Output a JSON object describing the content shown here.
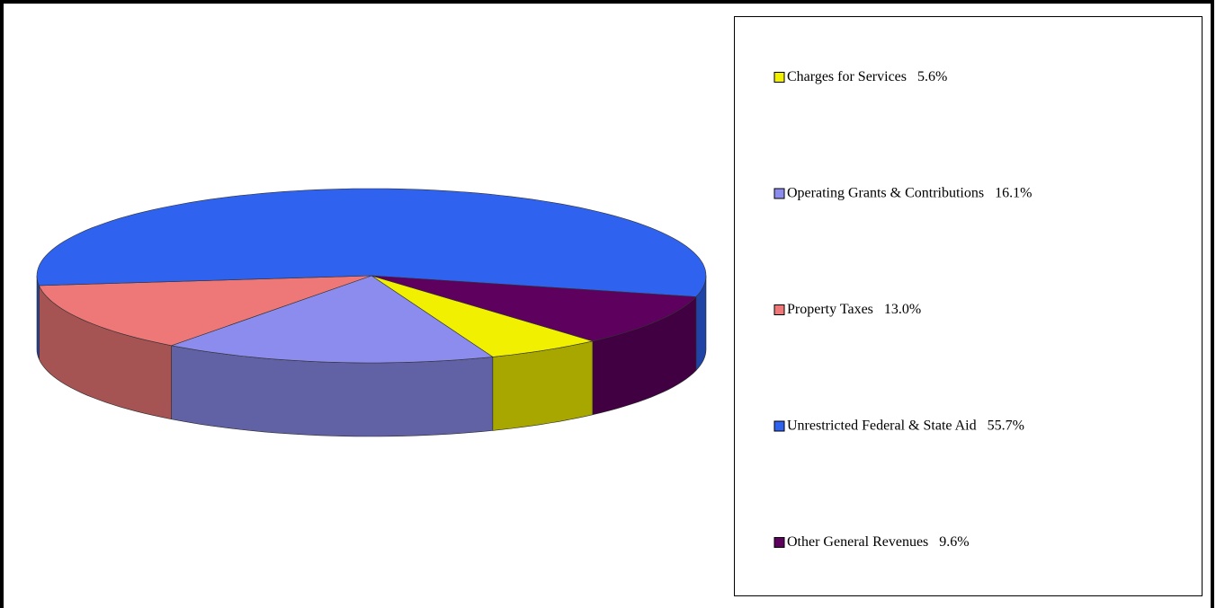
{
  "chart_data": {
    "type": "pie",
    "categories": [
      "Charges for Services",
      "Operating Grants & Contributions",
      "Property Taxes",
      "Unrestricted Federal & State Aid",
      "Other General Revenues"
    ],
    "values": [
      5.6,
      16.1,
      13.0,
      55.7,
      9.6
    ],
    "value_labels": [
      "5.6%",
      "16.1%",
      "13.0%",
      "55.7%",
      "9.6%"
    ],
    "colors": [
      "#f0f000",
      "#8c8cee",
      "#ee7878",
      "#2f62ee",
      "#5e005e"
    ],
    "legend": "right"
  }
}
